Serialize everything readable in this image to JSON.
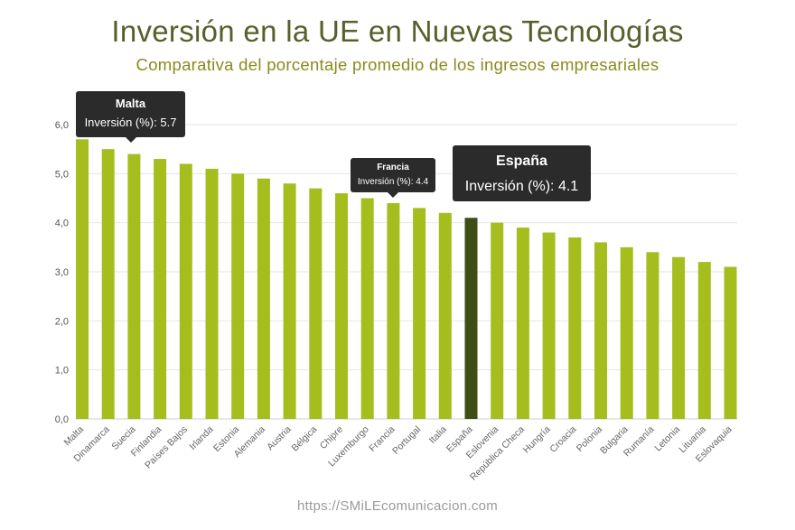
{
  "title": "Inversión en la UE en Nuevas Tecnologías",
  "subtitle": "Comparativa del porcentaje promedio de los ingresos empresariales",
  "footer": "https://SMiLEcomunicacion.com",
  "colors": {
    "bar": "#a6bd1e",
    "highlight": "#3f4d16",
    "grid": "#e6e6e6",
    "title": "#55602a",
    "subtitle": "#8a8a1e"
  },
  "chart_data": {
    "type": "bar",
    "title": "Inversión en la UE en Nuevas Tecnologías",
    "subtitle": "Comparativa del porcentaje promedio de los ingresos empresariales",
    "xlabel": "",
    "ylabel": "",
    "ylim": [
      0,
      6
    ],
    "yticks": [
      "0,0",
      "1,0",
      "2,0",
      "3,0",
      "4,0",
      "5,0",
      "6,0"
    ],
    "grid": true,
    "highlight": "España",
    "categories": [
      "Malta",
      "Dinamarca",
      "Suecia",
      "Finlandia",
      "Países Bajos",
      "Irlanda",
      "Estonia",
      "Alemania",
      "Austria",
      "Bélgica",
      "Chipre",
      "Luxemburgo",
      "Francia",
      "Portugal",
      "Italia",
      "España",
      "Eslovenia",
      "República Checa",
      "Hungría",
      "Croacia",
      "Polonia",
      "Bulgaria",
      "Rumanía",
      "Letonia",
      "Lituania",
      "Eslovaquia"
    ],
    "series": [
      {
        "name": "Inversión (%)",
        "values": [
          5.7,
          5.5,
          5.4,
          5.3,
          5.2,
          5.1,
          5.0,
          4.9,
          4.8,
          4.7,
          4.6,
          4.5,
          4.4,
          4.3,
          4.2,
          4.1,
          4.0,
          3.9,
          3.8,
          3.7,
          3.6,
          3.5,
          3.4,
          3.3,
          3.2,
          3.1
        ]
      }
    ]
  },
  "tooltips": {
    "malta": {
      "name": "Malta",
      "value": "Inversión (%): 5.7"
    },
    "francia": {
      "name": "Francia",
      "value": "Inversión (%): 4.4"
    },
    "espana": {
      "name": "España",
      "value": "Inversión (%): 4.1"
    }
  }
}
